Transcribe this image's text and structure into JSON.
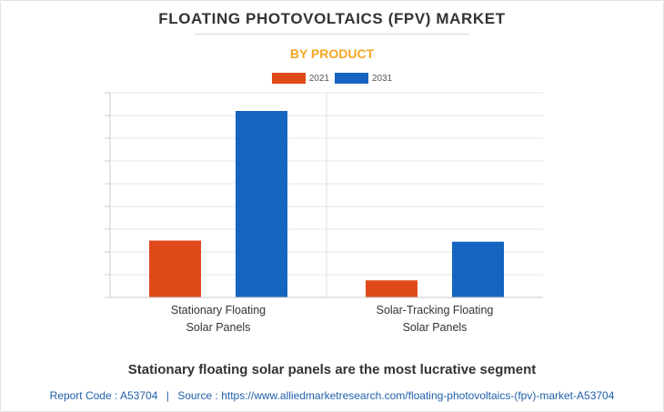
{
  "title": "FLOATING PHOTOVOLTAICS (FPV) MARKET",
  "subtitle": "BY PRODUCT",
  "caption": "Stationary floating solar panels are the most lucrative segment",
  "footer": {
    "report_code_label": "Report Code : A53704",
    "separator": "|",
    "source_label": "Source : https://www.alliedmarketresearch.com/floating-photovoltaics-(fpv)-market-A53704"
  },
  "colors": {
    "accent": "#f5a623",
    "series_2021": "#e04a1a",
    "series_2031": "#1565c0"
  },
  "chart_data": {
    "type": "bar",
    "title": "FLOATING PHOTOVOLTAICS (FPV) MARKET",
    "subtitle": "BY PRODUCT",
    "xlabel": "",
    "ylabel": "",
    "categories": [
      [
        "Stationary Floating",
        "Solar Panels"
      ],
      [
        "Solar-Tracking Floating",
        "Solar Panels"
      ]
    ],
    "series": [
      {
        "name": "2021",
        "values": [
          2.5,
          0.75
        ]
      },
      {
        "name": "2031",
        "values": [
          8.2,
          2.45
        ]
      }
    ],
    "ylim": [
      0,
      9
    ],
    "y_ticks_labeled": false,
    "grid": true,
    "legend_position": "top-center"
  }
}
